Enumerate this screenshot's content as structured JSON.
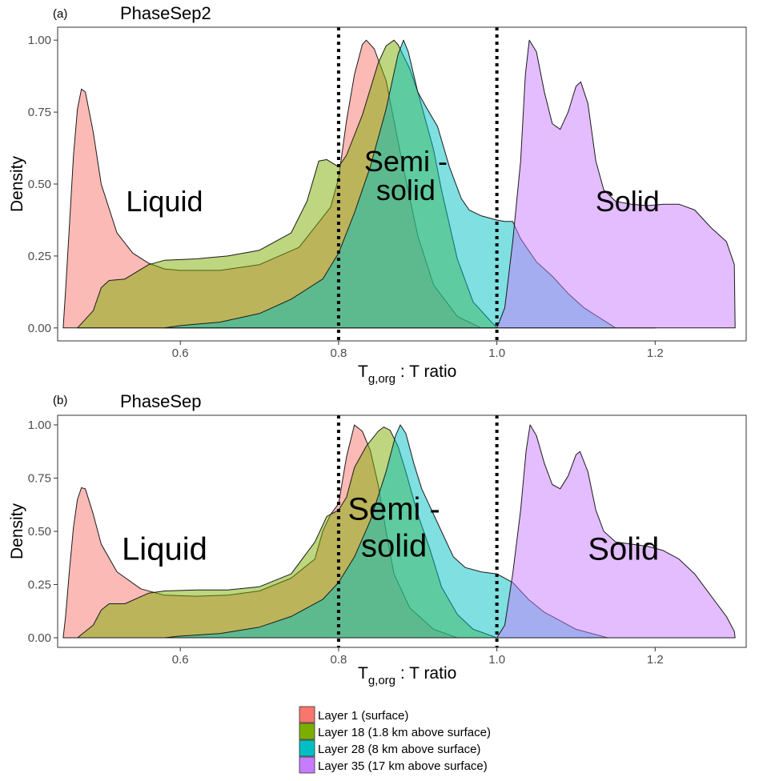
{
  "legend": {
    "items": [
      {
        "label": "Layer 1 (surface)",
        "color": "#F8766D"
      },
      {
        "label": "Layer 18 (1.8 km above surface)",
        "color": "#7CAE00"
      },
      {
        "label": "Layer 28 (8 km above surface)",
        "color": "#00BFC4"
      },
      {
        "label": "Layer 35 (17 km above surface)",
        "color": "#C77CFF"
      }
    ]
  },
  "chart_data": [
    {
      "type": "area",
      "panel_tag": "(a)",
      "title": "PhaseSep2",
      "ylabel": "Density",
      "xlabel_main": "T",
      "xlabel_sub": "g,org",
      "xlabel_rest": " : T ratio",
      "xlim": [
        0.445,
        1.315
      ],
      "ylim": [
        -0.045,
        1.045
      ],
      "x_ticks": [
        0.6,
        0.8,
        1.0,
        1.2
      ],
      "x_tick_labels": [
        "0.6",
        "0.8",
        "1.0",
        "1.2"
      ],
      "y_ticks": [
        0.0,
        0.25,
        0.5,
        0.75,
        1.0
      ],
      "y_tick_labels": [
        "0.00",
        "0.25",
        "0.50",
        "0.75",
        "1.00"
      ],
      "grid": false,
      "vlines": [
        0.8,
        1.0
      ],
      "regions": [
        {
          "lines": [
            "Liquid"
          ],
          "x": 0.58,
          "y": 0.44
        },
        {
          "lines": [
            "Semi -",
            "solid"
          ],
          "x": 0.885,
          "y": 0.53
        },
        {
          "lines": [
            "Solid"
          ],
          "x": 1.165,
          "y": 0.44
        }
      ],
      "series": [
        {
          "name": "Layer 1 (surface)",
          "color": "#F8766D",
          "points": [
            [
              0.452,
              0.0
            ],
            [
              0.455,
              0.13
            ],
            [
              0.46,
              0.36
            ],
            [
              0.465,
              0.6
            ],
            [
              0.47,
              0.76
            ],
            [
              0.475,
              0.83
            ],
            [
              0.48,
              0.82
            ],
            [
              0.49,
              0.68
            ],
            [
              0.5,
              0.5
            ],
            [
              0.52,
              0.33
            ],
            [
              0.54,
              0.26
            ],
            [
              0.56,
              0.225
            ],
            [
              0.58,
              0.205
            ],
            [
              0.6,
              0.2
            ],
            [
              0.65,
              0.2
            ],
            [
              0.7,
              0.22
            ],
            [
              0.75,
              0.28
            ],
            [
              0.79,
              0.42
            ],
            [
              0.8,
              0.52
            ],
            [
              0.81,
              0.72
            ],
            [
              0.82,
              0.88
            ],
            [
              0.83,
              0.985
            ],
            [
              0.835,
              1.0
            ],
            [
              0.845,
              0.97
            ],
            [
              0.86,
              0.86
            ],
            [
              0.88,
              0.58
            ],
            [
              0.9,
              0.32
            ],
            [
              0.92,
              0.15
            ],
            [
              0.95,
              0.04
            ],
            [
              0.98,
              0.0
            ],
            [
              1.0,
              0.0
            ]
          ]
        },
        {
          "name": "Layer 18 (1.8 km above surface)",
          "color": "#7CAE00",
          "points": [
            [
              0.47,
              0.0
            ],
            [
              0.49,
              0.06
            ],
            [
              0.5,
              0.14
            ],
            [
              0.51,
              0.165
            ],
            [
              0.53,
              0.17
            ],
            [
              0.56,
              0.22
            ],
            [
              0.58,
              0.235
            ],
            [
              0.62,
              0.24
            ],
            [
              0.66,
              0.25
            ],
            [
              0.7,
              0.27
            ],
            [
              0.74,
              0.33
            ],
            [
              0.76,
              0.44
            ],
            [
              0.775,
              0.58
            ],
            [
              0.785,
              0.585
            ],
            [
              0.8,
              0.56
            ],
            [
              0.81,
              0.6
            ],
            [
              0.83,
              0.74
            ],
            [
              0.85,
              0.92
            ],
            [
              0.86,
              0.98
            ],
            [
              0.87,
              1.0
            ],
            [
              0.875,
              0.985
            ],
            [
              0.89,
              0.9
            ],
            [
              0.9,
              0.82
            ],
            [
              0.91,
              0.72
            ],
            [
              0.92,
              0.62
            ],
            [
              0.93,
              0.48
            ],
            [
              0.95,
              0.24
            ],
            [
              0.97,
              0.09
            ],
            [
              1.0,
              0.0
            ]
          ]
        },
        {
          "name": "Layer 28 (8 km above surface)",
          "color": "#00BFC4",
          "points": [
            [
              0.58,
              0.0
            ],
            [
              0.6,
              0.008
            ],
            [
              0.65,
              0.02
            ],
            [
              0.7,
              0.05
            ],
            [
              0.74,
              0.1
            ],
            [
              0.78,
              0.17
            ],
            [
              0.8,
              0.26
            ],
            [
              0.82,
              0.4
            ],
            [
              0.84,
              0.56
            ],
            [
              0.86,
              0.76
            ],
            [
              0.875,
              0.95
            ],
            [
              0.882,
              1.0
            ],
            [
              0.888,
              0.96
            ],
            [
              0.9,
              0.82
            ],
            [
              0.91,
              0.77
            ],
            [
              0.925,
              0.7
            ],
            [
              0.94,
              0.56
            ],
            [
              0.955,
              0.45
            ],
            [
              0.965,
              0.41
            ],
            [
              0.98,
              0.39
            ],
            [
              1.0,
              0.375
            ],
            [
              1.01,
              0.37
            ],
            [
              1.02,
              0.37
            ],
            [
              1.03,
              0.31
            ],
            [
              1.05,
              0.23
            ],
            [
              1.07,
              0.18
            ],
            [
              1.09,
              0.12
            ],
            [
              1.11,
              0.07
            ],
            [
              1.15,
              0.0
            ],
            [
              1.2,
              0.0
            ]
          ]
        },
        {
          "name": "Layer 35 (17 km above surface)",
          "color": "#C77CFF",
          "points": [
            [
              1.0,
              0.0
            ],
            [
              1.01,
              0.07
            ],
            [
              1.02,
              0.3
            ],
            [
              1.03,
              0.58
            ],
            [
              1.036,
              0.88
            ],
            [
              1.041,
              1.0
            ],
            [
              1.05,
              0.96
            ],
            [
              1.06,
              0.82
            ],
            [
              1.07,
              0.71
            ],
            [
              1.08,
              0.69
            ],
            [
              1.09,
              0.75
            ],
            [
              1.1,
              0.84
            ],
            [
              1.106,
              0.855
            ],
            [
              1.115,
              0.78
            ],
            [
              1.125,
              0.58
            ],
            [
              1.135,
              0.48
            ],
            [
              1.15,
              0.44
            ],
            [
              1.17,
              0.43
            ],
            [
              1.19,
              0.425
            ],
            [
              1.21,
              0.43
            ],
            [
              1.23,
              0.43
            ],
            [
              1.25,
              0.41
            ],
            [
              1.27,
              0.35
            ],
            [
              1.29,
              0.3
            ],
            [
              1.3,
              0.22
            ],
            [
              1.301,
              0.0
            ]
          ]
        }
      ]
    },
    {
      "type": "area",
      "panel_tag": "(b)",
      "title": "PhaseSep",
      "ylabel": "Density",
      "xlabel_main": "T",
      "xlabel_sub": "g,org",
      "xlabel_rest": " : T ratio",
      "xlim": [
        0.445,
        1.315
      ],
      "ylim": [
        -0.045,
        1.045
      ],
      "x_ticks": [
        0.6,
        0.8,
        1.0,
        1.2
      ],
      "x_tick_labels": [
        "0.6",
        "0.8",
        "1.0",
        "1.2"
      ],
      "y_ticks": [
        0.0,
        0.25,
        0.5,
        0.75,
        1.0
      ],
      "y_tick_labels": [
        "0.00",
        "0.25",
        "0.50",
        "0.75",
        "1.00"
      ],
      "grid": false,
      "vlines": [
        0.8,
        1.0
      ],
      "regions": [
        {
          "lines": [
            "Liquid"
          ],
          "x": 0.58,
          "y": 0.42
        },
        {
          "lines": [
            "Semi -",
            "solid"
          ],
          "x": 0.87,
          "y": 0.52
        },
        {
          "lines": [
            "Solid"
          ],
          "x": 1.16,
          "y": 0.42
        }
      ],
      "series": [
        {
          "name": "Layer 1 (surface)",
          "color": "#F8766D",
          "points": [
            [
              0.452,
              0.0
            ],
            [
              0.455,
              0.1
            ],
            [
              0.46,
              0.32
            ],
            [
              0.465,
              0.52
            ],
            [
              0.47,
              0.65
            ],
            [
              0.475,
              0.705
            ],
            [
              0.48,
              0.7
            ],
            [
              0.49,
              0.58
            ],
            [
              0.5,
              0.44
            ],
            [
              0.52,
              0.31
            ],
            [
              0.55,
              0.23
            ],
            [
              0.58,
              0.2
            ],
            [
              0.62,
              0.195
            ],
            [
              0.66,
              0.2
            ],
            [
              0.7,
              0.22
            ],
            [
              0.74,
              0.28
            ],
            [
              0.77,
              0.37
            ],
            [
              0.78,
              0.5
            ],
            [
              0.79,
              0.58
            ],
            [
              0.8,
              0.63
            ],
            [
              0.81,
              0.85
            ],
            [
              0.82,
              1.0
            ],
            [
              0.83,
              0.97
            ],
            [
              0.84,
              0.88
            ],
            [
              0.85,
              0.72
            ],
            [
              0.86,
              0.5
            ],
            [
              0.87,
              0.3
            ],
            [
              0.89,
              0.14
            ],
            [
              0.92,
              0.04
            ],
            [
              0.95,
              0.0
            ],
            [
              1.0,
              0.0
            ]
          ]
        },
        {
          "name": "Layer 18 (1.8 km above surface)",
          "color": "#7CAE00",
          "points": [
            [
              0.47,
              0.0
            ],
            [
              0.49,
              0.06
            ],
            [
              0.5,
              0.13
            ],
            [
              0.51,
              0.16
            ],
            [
              0.53,
              0.16
            ],
            [
              0.56,
              0.21
            ],
            [
              0.58,
              0.22
            ],
            [
              0.62,
              0.225
            ],
            [
              0.66,
              0.225
            ],
            [
              0.7,
              0.24
            ],
            [
              0.74,
              0.3
            ],
            [
              0.77,
              0.45
            ],
            [
              0.785,
              0.57
            ],
            [
              0.8,
              0.6
            ],
            [
              0.81,
              0.66
            ],
            [
              0.82,
              0.8
            ],
            [
              0.835,
              0.9
            ],
            [
              0.85,
              0.97
            ],
            [
              0.857,
              0.99
            ],
            [
              0.865,
              0.975
            ],
            [
              0.875,
              0.9
            ],
            [
              0.885,
              0.78
            ],
            [
              0.9,
              0.58
            ],
            [
              0.915,
              0.42
            ],
            [
              0.93,
              0.24
            ],
            [
              0.95,
              0.11
            ],
            [
              0.97,
              0.04
            ],
            [
              1.0,
              0.0
            ]
          ]
        },
        {
          "name": "Layer 28 (8 km above surface)",
          "color": "#00BFC4",
          "points": [
            [
              0.58,
              0.0
            ],
            [
              0.6,
              0.008
            ],
            [
              0.65,
              0.02
            ],
            [
              0.7,
              0.05
            ],
            [
              0.74,
              0.1
            ],
            [
              0.78,
              0.18
            ],
            [
              0.8,
              0.26
            ],
            [
              0.82,
              0.38
            ],
            [
              0.84,
              0.55
            ],
            [
              0.86,
              0.78
            ],
            [
              0.872,
              0.95
            ],
            [
              0.878,
              1.0
            ],
            [
              0.885,
              0.96
            ],
            [
              0.895,
              0.82
            ],
            [
              0.905,
              0.7
            ],
            [
              0.915,
              0.62
            ],
            [
              0.93,
              0.5
            ],
            [
              0.945,
              0.38
            ],
            [
              0.96,
              0.33
            ],
            [
              0.98,
              0.31
            ],
            [
              1.0,
              0.3
            ],
            [
              1.02,
              0.26
            ],
            [
              1.04,
              0.18
            ],
            [
              1.06,
              0.12
            ],
            [
              1.08,
              0.08
            ],
            [
              1.1,
              0.04
            ],
            [
              1.14,
              0.0
            ],
            [
              1.2,
              0.0
            ]
          ]
        },
        {
          "name": "Layer 35 (17 km above surface)",
          "color": "#C77CFF",
          "points": [
            [
              1.0,
              0.0
            ],
            [
              1.01,
              0.06
            ],
            [
              1.02,
              0.3
            ],
            [
              1.03,
              0.6
            ],
            [
              1.037,
              0.88
            ],
            [
              1.042,
              1.0
            ],
            [
              1.05,
              0.95
            ],
            [
              1.06,
              0.82
            ],
            [
              1.07,
              0.72
            ],
            [
              1.08,
              0.7
            ],
            [
              1.09,
              0.76
            ],
            [
              1.1,
              0.86
            ],
            [
              1.105,
              0.875
            ],
            [
              1.115,
              0.78
            ],
            [
              1.125,
              0.6
            ],
            [
              1.135,
              0.5
            ],
            [
              1.15,
              0.45
            ],
            [
              1.17,
              0.44
            ],
            [
              1.19,
              0.43
            ],
            [
              1.21,
              0.41
            ],
            [
              1.23,
              0.37
            ],
            [
              1.25,
              0.3
            ],
            [
              1.27,
              0.2
            ],
            [
              1.29,
              0.1
            ],
            [
              1.3,
              0.03
            ],
            [
              1.301,
              0.0
            ]
          ]
        }
      ]
    }
  ]
}
